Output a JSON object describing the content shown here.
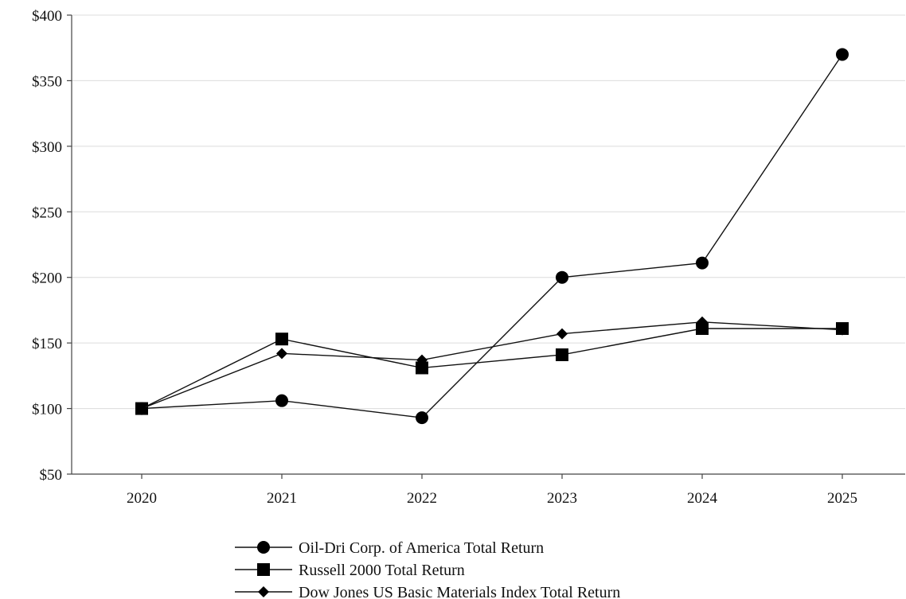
{
  "chart_data": {
    "type": "line",
    "title": "",
    "xlabel": "",
    "ylabel": "",
    "categories": [
      "2020",
      "2021",
      "2022",
      "2023",
      "2024",
      "2025"
    ],
    "ylim": [
      50,
      400
    ],
    "yticks": [
      50,
      100,
      150,
      200,
      250,
      300,
      350,
      400
    ],
    "ytick_labels": [
      "$50",
      "$100",
      "$150",
      "$200",
      "$250",
      "$300",
      "$350",
      "$400"
    ],
    "grid": "horizontal",
    "legend_position": "bottom",
    "series": [
      {
        "name": "Oil-Dri Corp. of America Total Return",
        "marker": "circle",
        "values": [
          100,
          106,
          93,
          200,
          211,
          370
        ]
      },
      {
        "name": "Russell 2000 Total Return",
        "marker": "square",
        "values": [
          100,
          153,
          131,
          141,
          161,
          161
        ]
      },
      {
        "name": "Dow Jones US Basic Materials Index Total Return",
        "marker": "diamond",
        "values": [
          100,
          142,
          137,
          157,
          166,
          160
        ]
      }
    ]
  }
}
